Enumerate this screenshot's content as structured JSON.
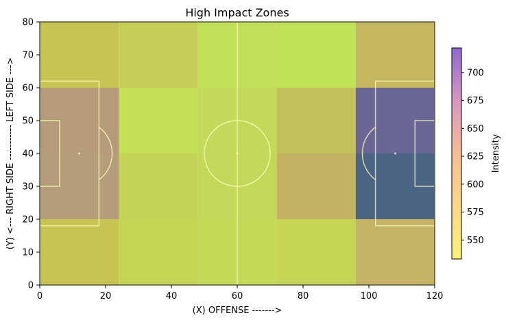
{
  "chart_data": {
    "type": "heatmap",
    "title": "High Impact Zones",
    "xlabel": "(X) OFFENSE ------->",
    "ylabel": "(Y) <--- RIGHT SIDE ----------- LEFT SIDE --->",
    "xlim": [
      0,
      120
    ],
    "ylim": [
      0,
      80
    ],
    "x_ticks": [
      0,
      20,
      40,
      60,
      80,
      100,
      120
    ],
    "y_ticks": [
      0,
      10,
      20,
      30,
      40,
      50,
      60,
      70,
      80
    ],
    "x_bins": [
      0,
      24,
      48,
      72,
      96,
      120
    ],
    "y_bins": [
      0,
      20,
      40,
      60,
      80
    ],
    "grid": false,
    "colormap": {
      "low": "#fdf17c",
      "mid": "#f6bd96",
      "high": "#8c6bd0"
    },
    "cells": [
      {
        "x": [
          0,
          24
        ],
        "y": [
          60,
          80
        ],
        "color": "#c6c554"
      },
      {
        "x": [
          24,
          48
        ],
        "y": [
          60,
          80
        ],
        "color": "#c7cd56"
      },
      {
        "x": [
          48,
          72
        ],
        "y": [
          60,
          80
        ],
        "color": "#c1e05a"
      },
      {
        "x": [
          72,
          96
        ],
        "y": [
          60,
          80
        ],
        "color": "#c0e259"
      },
      {
        "x": [
          96,
          120
        ],
        "y": [
          60,
          80
        ],
        "color": "#c5b660"
      },
      {
        "x": [
          0,
          24
        ],
        "y": [
          40,
          60
        ],
        "color": "#b69b7b"
      },
      {
        "x": [
          24,
          48
        ],
        "y": [
          40,
          60
        ],
        "color": "#c3df58"
      },
      {
        "x": [
          48,
          72
        ],
        "y": [
          40,
          60
        ],
        "color": "#c2d95a"
      },
      {
        "x": [
          72,
          96
        ],
        "y": [
          40,
          60
        ],
        "color": "#c1c05d"
      },
      {
        "x": [
          96,
          120
        ],
        "y": [
          40,
          60
        ],
        "color": "#6a6796"
      },
      {
        "x": [
          0,
          24
        ],
        "y": [
          20,
          40
        ],
        "color": "#b59c7b"
      },
      {
        "x": [
          24,
          48
        ],
        "y": [
          20,
          40
        ],
        "color": "#c4d356"
      },
      {
        "x": [
          48,
          72
        ],
        "y": [
          20,
          40
        ],
        "color": "#c3d759"
      },
      {
        "x": [
          72,
          96
        ],
        "y": [
          20,
          40
        ],
        "color": "#c2b160"
      },
      {
        "x": [
          96,
          120
        ],
        "y": [
          20,
          40
        ],
        "color": "#4b6483"
      },
      {
        "x": [
          0,
          24
        ],
        "y": [
          0,
          20
        ],
        "color": "#c6c554"
      },
      {
        "x": [
          24,
          48
        ],
        "y": [
          0,
          20
        ],
        "color": "#c5d455"
      },
      {
        "x": [
          48,
          72
        ],
        "y": [
          0,
          20
        ],
        "color": "#c4d957"
      },
      {
        "x": [
          72,
          96
        ],
        "y": [
          0,
          20
        ],
        "color": "#c5d455"
      },
      {
        "x": [
          96,
          120
        ],
        "y": [
          0,
          20
        ],
        "color": "#c4b265"
      }
    ],
    "colorbar": {
      "label": "Intensity",
      "min": 533,
      "max": 722,
      "ticks": [
        550,
        575,
        600,
        625,
        650,
        675,
        700
      ]
    }
  }
}
